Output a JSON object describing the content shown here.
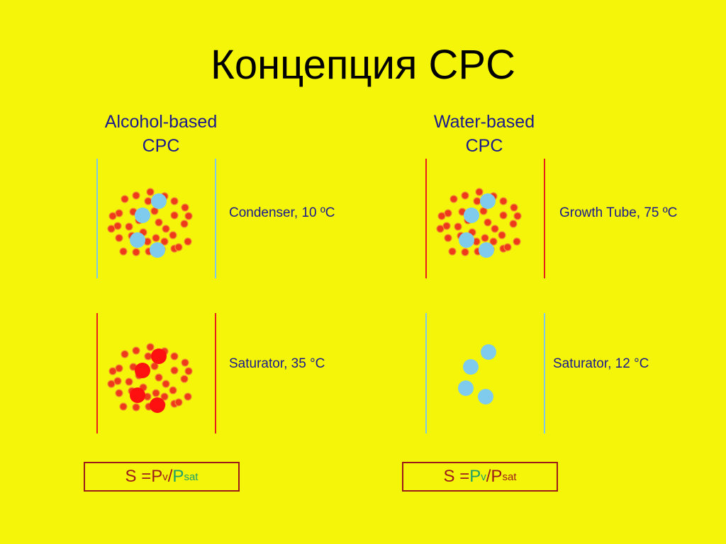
{
  "title": "Концепция CPC",
  "colors": {
    "background": "#f5f50a",
    "wall_cold": "#7ec8e8",
    "wall_hot": "#e8201a",
    "vapor_dot": "#ee3a1a",
    "vapor_dot_outline": "#f09030",
    "particle": "#7ecbee",
    "grown_droplet": "#ff1010",
    "text_blue": "#1a1a8c",
    "formula_red": "#9b1a1a",
    "formula_green": "#1f9e6a"
  },
  "alcohol": {
    "heading_line1": "Alcohol-based",
    "heading_line2": "CPC",
    "top_label": "Condenser, 10 ºC",
    "bottom_label": "Saturator, 35 °C",
    "formula": {
      "prefix": "S = ",
      "pv": "P",
      "pv_sub": "v",
      "slash": "/",
      "psat": "P",
      "psat_sub": "sat"
    }
  },
  "water": {
    "heading_line1": "Water-based",
    "heading_line2": "CPC",
    "top_label": "Growth Tube, 75 ºC",
    "bottom_label": "Saturator, 12 °C",
    "formula": {
      "prefix": "S = ",
      "pv": "P",
      "pv_sub": "v",
      "slash": "/",
      "psat": "P",
      "psat_sub": "sat"
    }
  }
}
